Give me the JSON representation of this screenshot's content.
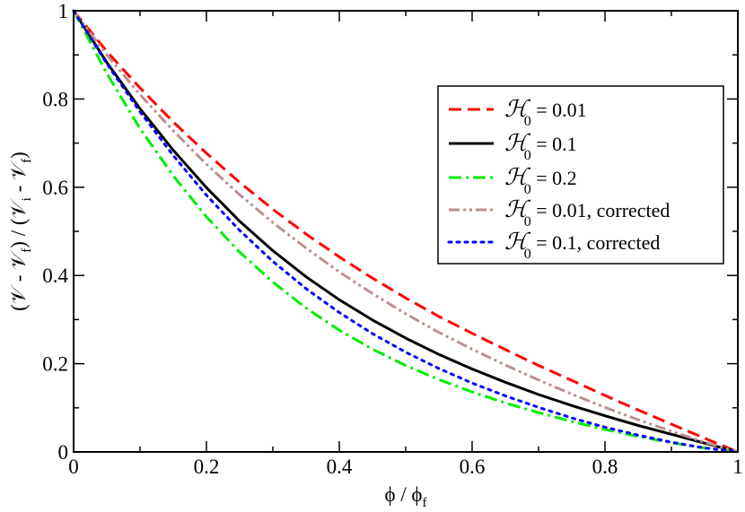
{
  "chart_data": {
    "type": "line",
    "title": "",
    "xlabel": {
      "base": "ϕ / ϕ",
      "sub": "f"
    },
    "ylabel": {
      "parts": [
        {
          "t": "(𝒱 - 𝒱",
          "kind": "text"
        },
        {
          "t": "f",
          "kind": "sub"
        },
        {
          "t": ") / (𝒱",
          "kind": "text"
        },
        {
          "t": "i",
          "kind": "sub"
        },
        {
          "t": " - 𝒱",
          "kind": "text"
        },
        {
          "t": "f",
          "kind": "sub"
        },
        {
          "t": ")",
          "kind": "text"
        }
      ]
    },
    "xlim": [
      0,
      1
    ],
    "ylim": [
      0,
      1
    ],
    "xticks": [
      0,
      0.2,
      0.4,
      0.6,
      0.8,
      1
    ],
    "xtick_labels": [
      "0",
      "0.2",
      "0.4",
      "0.6",
      "0.8",
      "1"
    ],
    "yticks": [
      0,
      0.2,
      0.4,
      0.6,
      0.8,
      1
    ],
    "ytick_labels": [
      "0",
      "0.2",
      "0.4",
      "0.6",
      "0.8",
      "1"
    ],
    "grid": false,
    "legend_position": "top-right",
    "series": [
      {
        "name": "h0-0.01",
        "legend_symbol": "ℋ",
        "legend_sub": "0",
        "legend_rest": " = 0.01",
        "color": "#ff0000",
        "dash": "dashed",
        "x": [
          0,
          0.05,
          0.1,
          0.15,
          0.2,
          0.25,
          0.3,
          0.35,
          0.4,
          0.45,
          0.5,
          0.55,
          0.6,
          0.65,
          0.7,
          0.75,
          0.8,
          0.85,
          0.9,
          0.95,
          1.0
        ],
        "y": [
          1.0,
          0.908,
          0.825,
          0.748,
          0.677,
          0.611,
          0.55,
          0.494,
          0.442,
          0.394,
          0.349,
          0.307,
          0.269,
          0.232,
          0.196,
          0.162,
          0.128,
          0.095,
          0.063,
          0.031,
          0.0
        ]
      },
      {
        "name": "h0-0.1",
        "legend_symbol": "ℋ",
        "legend_sub": "0",
        "legend_rest": " = 0.1",
        "color": "#000000",
        "dash": "solid",
        "x": [
          0,
          0.05,
          0.1,
          0.15,
          0.2,
          0.25,
          0.3,
          0.35,
          0.4,
          0.45,
          0.5,
          0.55,
          0.6,
          0.65,
          0.7,
          0.75,
          0.8,
          0.85,
          0.9,
          0.95,
          1.0
        ],
        "y": [
          1.0,
          0.883,
          0.778,
          0.684,
          0.599,
          0.523,
          0.456,
          0.397,
          0.345,
          0.299,
          0.258,
          0.221,
          0.188,
          0.158,
          0.13,
          0.105,
          0.082,
          0.06,
          0.04,
          0.02,
          0.0
        ]
      },
      {
        "name": "h0-0.2",
        "legend_symbol": "ℋ",
        "legend_sub": "0",
        "legend_rest": " = 0.2",
        "color": "#00ee00",
        "dash": "dashdot",
        "x": [
          0,
          0.05,
          0.1,
          0.15,
          0.2,
          0.25,
          0.3,
          0.35,
          0.4,
          0.45,
          0.5,
          0.55,
          0.6,
          0.65,
          0.7,
          0.75,
          0.8,
          0.85,
          0.9,
          0.95,
          1.0
        ],
        "y": [
          1.0,
          0.858,
          0.733,
          0.626,
          0.533,
          0.453,
          0.385,
          0.326,
          0.276,
          0.233,
          0.196,
          0.164,
          0.136,
          0.111,
          0.089,
          0.069,
          0.051,
          0.035,
          0.021,
          0.009,
          0.0
        ]
      },
      {
        "name": "h0-0.01-corrected",
        "legend_symbol": "ℋ",
        "legend_sub": "0",
        "legend_rest": " = 0.01, corrected",
        "color": "#bc8f8f",
        "dash": "dashdotdot",
        "x": [
          0,
          0.05,
          0.1,
          0.15,
          0.2,
          0.25,
          0.3,
          0.35,
          0.4,
          0.45,
          0.5,
          0.55,
          0.6,
          0.65,
          0.7,
          0.75,
          0.8,
          0.85,
          0.9,
          0.95,
          1.0
        ],
        "y": [
          1.0,
          0.9,
          0.81,
          0.728,
          0.652,
          0.583,
          0.52,
          0.462,
          0.408,
          0.359,
          0.313,
          0.271,
          0.233,
          0.197,
          0.163,
          0.131,
          0.101,
          0.073,
          0.047,
          0.022,
          0.0
        ]
      },
      {
        "name": "h0-0.1-corrected",
        "legend_symbol": "ℋ",
        "legend_sub": "0",
        "legend_rest": " = 0.1,   corrected",
        "color": "#0000ff",
        "dash": "dotted",
        "x": [
          0,
          0.05,
          0.1,
          0.15,
          0.2,
          0.25,
          0.3,
          0.35,
          0.4,
          0.45,
          0.5,
          0.55,
          0.6,
          0.65,
          0.7,
          0.75,
          0.8,
          0.85,
          0.9,
          0.95,
          1.0
        ],
        "y": [
          1.0,
          0.88,
          0.771,
          0.672,
          0.582,
          0.502,
          0.432,
          0.37,
          0.316,
          0.268,
          0.226,
          0.189,
          0.156,
          0.127,
          0.101,
          0.077,
          0.056,
          0.038,
          0.022,
          0.009,
          0.0
        ]
      }
    ]
  }
}
